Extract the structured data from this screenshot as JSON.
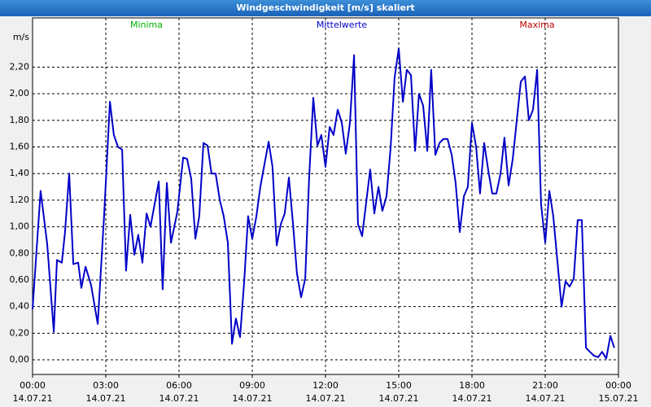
{
  "chart_data": {
    "type": "line",
    "title": "Windgeschwindigkeit [m/s] skaliert",
    "y_label": "m/s",
    "series": [
      {
        "name": "Minima",
        "color": "#00b000",
        "values": []
      },
      {
        "name": "Mittelwerte",
        "color": "#0000c8",
        "x": [
          0,
          0.33,
          0.6,
          0.87,
          1,
          1.2,
          1.33,
          1.5,
          1.67,
          1.87,
          2,
          2.17,
          2.4,
          2.67,
          2.93,
          3.17,
          3.33,
          3.5,
          3.67,
          3.83,
          4,
          4.17,
          4.33,
          4.5,
          4.67,
          4.83,
          5.17,
          5.33,
          5.5,
          5.67,
          5.93,
          6.17,
          6.33,
          6.5,
          6.67,
          6.83,
          7,
          7.17,
          7.33,
          7.5,
          7.67,
          7.83,
          8,
          8.17,
          8.33,
          8.5,
          8.67,
          8.83,
          9,
          9.17,
          9.33,
          9.67,
          9.83,
          10,
          10.17,
          10.33,
          10.5,
          10.67,
          10.83,
          11,
          11.17,
          11.33,
          11.5,
          11.67,
          11.83,
          12,
          12.17,
          12.33,
          12.5,
          12.67,
          12.83,
          13,
          13.17,
          13.33,
          13.5,
          13.83,
          14,
          14.17,
          14.33,
          14.5,
          14.67,
          14.83,
          15,
          15.17,
          15.33,
          15.5,
          15.67,
          15.83,
          16,
          16.17,
          16.33,
          16.5,
          16.67,
          16.83,
          17,
          17.17,
          17.33,
          17.5,
          17.67,
          17.83,
          18,
          18.17,
          18.33,
          18.5,
          18.67,
          18.83,
          19,
          19.17,
          19.33,
          19.5,
          19.67,
          20,
          20.17,
          20.33,
          20.5,
          20.67,
          20.83,
          21,
          21.17,
          21.33,
          21.67,
          21.83,
          22,
          22.17,
          22.33,
          22.5,
          22.67,
          22.83,
          23,
          23.17,
          23.33,
          23.5,
          23.67,
          23.83
        ],
        "values": [
          0.38,
          1.27,
          0.87,
          0.21,
          0.75,
          0.73,
          0.96,
          1.4,
          0.72,
          0.73,
          0.54,
          0.7,
          0.56,
          0.27,
          1.08,
          1.94,
          1.69,
          1.6,
          1.58,
          0.67,
          1.09,
          0.79,
          0.94,
          0.73,
          1.1,
          1,
          1.34,
          0.53,
          1.33,
          0.88,
          1.11,
          1.52,
          1.51,
          1.36,
          0.91,
          1.08,
          1.63,
          1.61,
          1.4,
          1.4,
          1.2,
          1.08,
          0.88,
          0.12,
          0.31,
          0.17,
          0.59,
          1.08,
          0.91,
          1.08,
          1.3,
          1.64,
          1.45,
          0.86,
          1.02,
          1.1,
          1.37,
          1.02,
          0.65,
          0.47,
          0.61,
          1.37,
          1.97,
          1.61,
          1.69,
          1.45,
          1.75,
          1.69,
          1.88,
          1.78,
          1.55,
          1.78,
          2.29,
          1.02,
          0.93,
          1.43,
          1.1,
          1.3,
          1.12,
          1.23,
          1.6,
          2.12,
          2.34,
          1.94,
          2.18,
          2.14,
          1.57,
          2,
          1.91,
          1.57,
          2.18,
          1.54,
          1.63,
          1.66,
          1.66,
          1.54,
          1.33,
          0.96,
          1.23,
          1.3,
          1.78,
          1.6,
          1.25,
          1.63,
          1.42,
          1.25,
          1.25,
          1.4,
          1.67,
          1.31,
          1.51,
          2.09,
          2.13,
          1.8,
          1.88,
          2.18,
          1.17,
          0.88,
          1.27,
          1.08,
          0.4,
          0.59,
          0.55,
          0.61,
          1.05,
          1.05,
          0.09,
          0.06,
          0.03,
          0.02,
          0.06,
          0.01,
          0.18,
          0.09
        ]
      },
      {
        "name": "Maxima",
        "color": "#c00000",
        "values": []
      }
    ],
    "xlim": [
      0,
      24
    ],
    "xticks": [
      {
        "value": 0,
        "label": [
          "00:00",
          "14.07.21"
        ]
      },
      {
        "value": 3,
        "label": [
          "03:00",
          "14.07.21"
        ]
      },
      {
        "value": 6,
        "label": [
          "06:00",
          "14.07.21"
        ]
      },
      {
        "value": 9,
        "label": [
          "09:00",
          "14.07.21"
        ]
      },
      {
        "value": 12,
        "label": [
          "12:00",
          "14.07.21"
        ]
      },
      {
        "value": 15,
        "label": [
          "15:00",
          "14.07.21"
        ]
      },
      {
        "value": 18,
        "label": [
          "18:00",
          "14.07.21"
        ]
      },
      {
        "value": 21,
        "label": [
          "21:00",
          "14.07.21"
        ]
      },
      {
        "value": 24,
        "label": [
          "00:00",
          "15.07.21"
        ]
      }
    ],
    "ylim": [
      -0.11,
      2.57
    ],
    "yticks": [
      {
        "value": 0,
        "label": "0,00"
      },
      {
        "value": 0.2,
        "label": "0,20"
      },
      {
        "value": 0.4,
        "label": "0,40"
      },
      {
        "value": 0.6,
        "label": "0,60"
      },
      {
        "value": 0.8,
        "label": "0,80"
      },
      {
        "value": 1,
        "label": "1,00"
      },
      {
        "value": 1.2,
        "label": "1,20"
      },
      {
        "value": 1.4,
        "label": "1,40"
      },
      {
        "value": 1.6,
        "label": "1,60"
      },
      {
        "value": 1.8,
        "label": "1,80"
      },
      {
        "value": 2,
        "label": "2,00"
      },
      {
        "value": 2.2,
        "label": "2,20"
      }
    ],
    "grid": true
  }
}
